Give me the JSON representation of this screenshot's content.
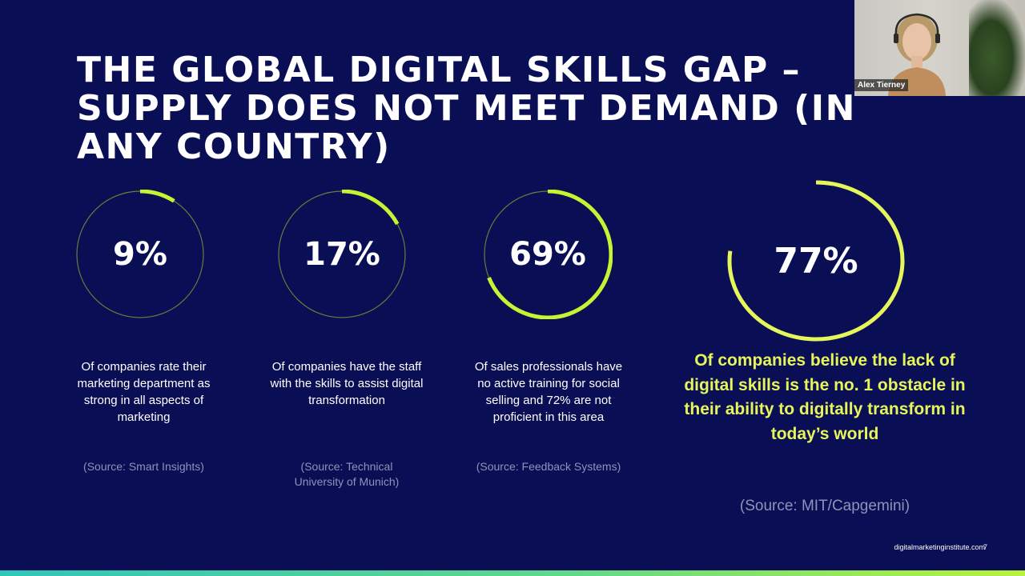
{
  "slide": {
    "title_lines": [
      "THE GLOBAL DIGITAL SKILLS GAP –",
      "SUPPLY DOES NOT MEET DEMAND (IN",
      "ANY COUNTRY)"
    ],
    "stats": [
      {
        "percent": "9%",
        "value": 9,
        "description": "Of companies rate their marketing department as strong in all aspects of marketing",
        "source": "(Source: Smart Insights)"
      },
      {
        "percent": "17%",
        "value": 17,
        "description": "Of companies have the staff with the skills to assist digital transformation",
        "source": "(Source: Technical University of Munich)"
      },
      {
        "percent": "69%",
        "value": 69,
        "description": "Of sales professionals have no active training for social selling and 72% are not proficient in this area",
        "source": "(Source: Feedback Systems)"
      },
      {
        "percent": "77%",
        "value": 77,
        "description": "Of companies believe the lack of digital skills is the no. 1 obstacle in their ability to digitally transform in today’s world",
        "source": "(Source: MIT/Capgemini)"
      }
    ],
    "footer_url": "digitalmarketinginstitute.com",
    "page_number": "7",
    "colors": {
      "background": "#0a0e55",
      "accent": "#c6f432",
      "highlight_text": "#e6f55a"
    }
  },
  "video": {
    "participant_name": "Alex Tierney"
  }
}
